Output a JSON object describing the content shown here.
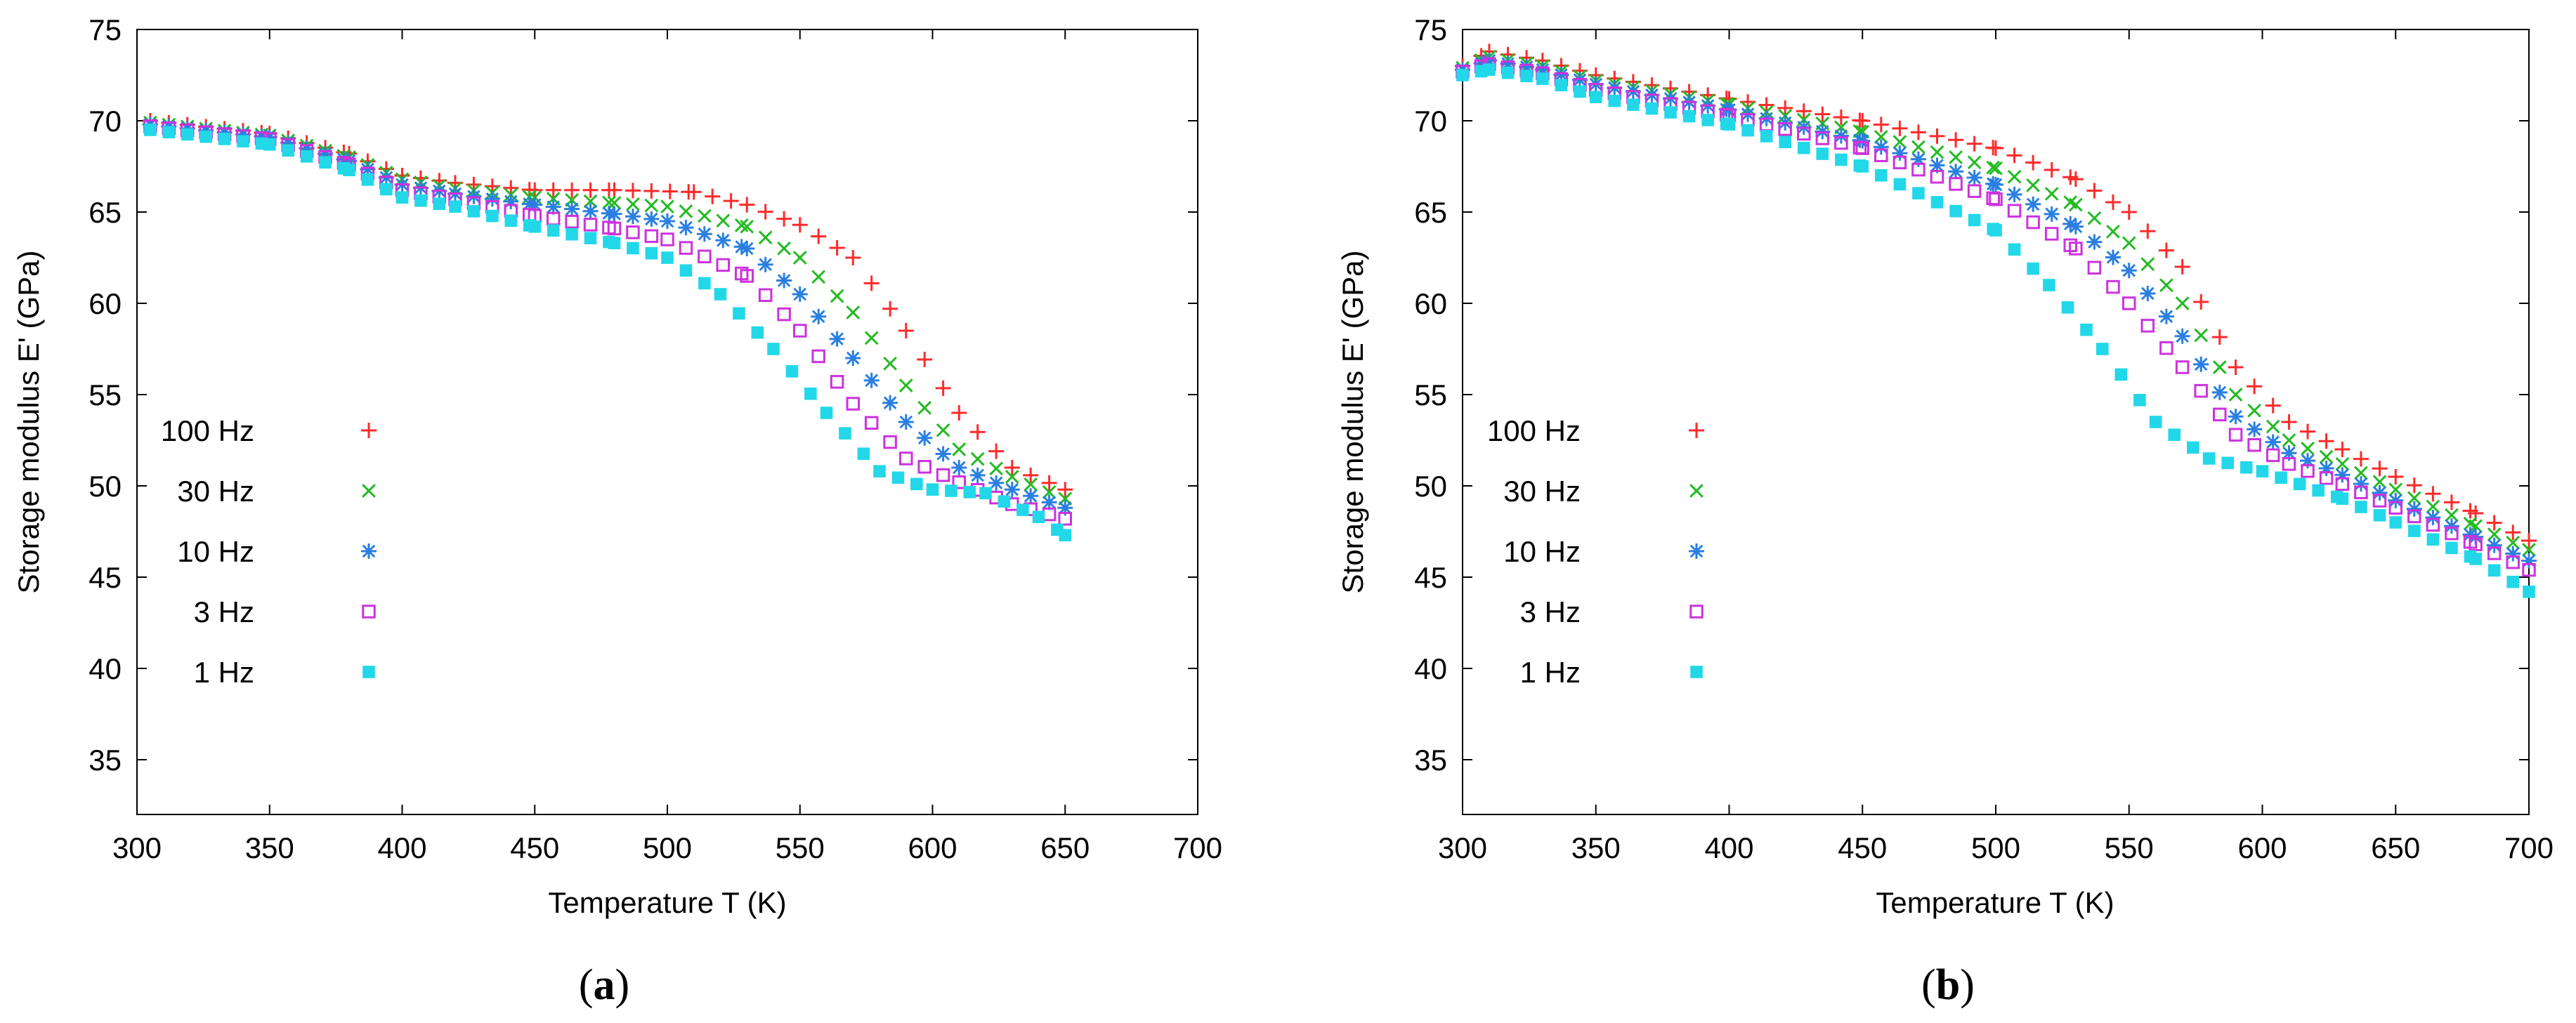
{
  "chart_data": [
    {
      "type": "scatter",
      "panel_label": [
        "(",
        "a",
        ")"
      ],
      "xlabel": "Temperature  T  (K)",
      "ylabel": "Storage modulus  E'  (GPa)",
      "xlim": [
        300,
        700
      ],
      "ylim": [
        32,
        75
      ],
      "xticks": [
        300,
        350,
        400,
        450,
        500,
        550,
        600,
        650,
        700
      ],
      "yticks": [
        35,
        40,
        45,
        50,
        55,
        60,
        65,
        70,
        75
      ],
      "legend_position": "left",
      "series": [
        {
          "name": "100 Hz",
          "marker": "plus",
          "color": "#ff2a2a",
          "x": [
            305,
            350,
            380,
            400,
            420,
            450,
            480,
            510,
            530,
            550,
            570,
            590,
            610,
            630,
            650
          ],
          "y": [
            70.0,
            69.3,
            68.2,
            67.0,
            66.6,
            66.2,
            66.2,
            66.1,
            65.4,
            64.3,
            62.5,
            58.5,
            54.0,
            51.0,
            49.8
          ]
        },
        {
          "name": "30 Hz",
          "marker": "cross",
          "color": "#22bb22",
          "x": [
            305,
            350,
            380,
            400,
            420,
            450,
            480,
            500,
            530,
            550,
            570,
            590,
            610,
            630,
            650
          ],
          "y": [
            69.9,
            69.2,
            68.0,
            66.8,
            66.3,
            65.8,
            65.5,
            65.3,
            64.2,
            62.5,
            59.5,
            55.5,
            52.0,
            50.5,
            49.3
          ]
        },
        {
          "name": "10 Hz",
          "marker": "star",
          "color": "#2a7fe0",
          "x": [
            305,
            350,
            380,
            400,
            420,
            450,
            480,
            500,
            530,
            550,
            570,
            590,
            610,
            630,
            650
          ],
          "y": [
            69.8,
            69.1,
            67.8,
            66.5,
            66.0,
            65.4,
            64.9,
            64.5,
            63.0,
            60.5,
            57.0,
            53.5,
            51.0,
            49.8,
            48.8
          ]
        },
        {
          "name": "3 Hz",
          "marker": "square-open",
          "color": "#cc33dd",
          "x": [
            305,
            350,
            380,
            400,
            420,
            450,
            480,
            500,
            530,
            550,
            570,
            590,
            610,
            630,
            650
          ],
          "y": [
            69.7,
            69.0,
            67.6,
            66.2,
            65.7,
            64.8,
            64.1,
            63.5,
            61.5,
            58.5,
            54.5,
            51.5,
            50.2,
            49.0,
            48.2
          ]
        },
        {
          "name": "1 Hz",
          "marker": "square-filled",
          "color": "#22d8e8",
          "x": [
            305,
            350,
            380,
            400,
            420,
            450,
            480,
            500,
            520,
            540,
            560,
            580,
            600,
            620,
            640,
            650
          ],
          "y": [
            69.5,
            68.7,
            67.3,
            65.8,
            65.3,
            64.2,
            63.3,
            62.5,
            60.5,
            57.5,
            54.0,
            50.8,
            49.8,
            49.6,
            48.3,
            47.3
          ]
        }
      ]
    },
    {
      "type": "scatter",
      "panel_label": [
        "(",
        "b",
        ")"
      ],
      "xlabel": "Temperature  T  (K)",
      "ylabel": "Storage modulus  E'  (GPa)",
      "xlim": [
        300,
        700
      ],
      "ylim": [
        32,
        75
      ],
      "xticks": [
        300,
        350,
        400,
        450,
        500,
        550,
        600,
        650,
        700
      ],
      "yticks": [
        35,
        40,
        45,
        50,
        55,
        60,
        65,
        70,
        75
      ],
      "legend_position": "left",
      "series": [
        {
          "name": "100 Hz",
          "marker": "plus",
          "color": "#ff2a2a",
          "x": [
            300,
            310,
            330,
            350,
            400,
            450,
            500,
            530,
            550,
            570,
            590,
            610,
            630,
            650,
            680,
            700
          ],
          "y": [
            73.0,
            73.8,
            73.3,
            72.5,
            71.2,
            70.0,
            68.5,
            66.8,
            65.0,
            62.0,
            56.5,
            53.5,
            52.0,
            50.5,
            48.5,
            47.0
          ]
        },
        {
          "name": "30 Hz",
          "marker": "cross",
          "color": "#22bb22",
          "x": [
            300,
            310,
            330,
            350,
            400,
            450,
            500,
            530,
            550,
            570,
            590,
            610,
            630,
            650,
            680,
            700
          ],
          "y": [
            72.9,
            73.5,
            73.0,
            72.2,
            70.9,
            69.4,
            67.4,
            65.4,
            63.3,
            60.0,
            55.0,
            52.5,
            51.2,
            49.8,
            47.8,
            46.5
          ]
        },
        {
          "name": "10 Hz",
          "marker": "star",
          "color": "#2a7fe0",
          "x": [
            300,
            310,
            330,
            350,
            400,
            450,
            500,
            530,
            550,
            570,
            590,
            610,
            630,
            650,
            680,
            700
          ],
          "y": [
            72.8,
            73.3,
            72.8,
            72.0,
            70.6,
            68.9,
            66.5,
            64.2,
            61.8,
            58.2,
            53.8,
            51.8,
            50.6,
            49.2,
            47.2,
            45.9
          ]
        },
        {
          "name": "3 Hz",
          "marker": "square-open",
          "color": "#cc33dd",
          "x": [
            300,
            310,
            330,
            350,
            400,
            450,
            500,
            530,
            550,
            570,
            590,
            610,
            630,
            650,
            680,
            700
          ],
          "y": [
            72.7,
            73.1,
            72.6,
            71.7,
            70.3,
            68.5,
            65.7,
            63.0,
            60.0,
            56.5,
            52.8,
            51.2,
            50.1,
            48.8,
            46.8,
            45.4
          ]
        },
        {
          "name": "1 Hz",
          "marker": "square-filled",
          "color": "#22d8e8",
          "x": [
            300,
            310,
            330,
            350,
            400,
            450,
            500,
            520,
            540,
            560,
            580,
            600,
            630,
            650,
            680,
            700
          ],
          "y": [
            72.5,
            72.8,
            72.3,
            71.3,
            69.8,
            67.5,
            64.0,
            61.0,
            57.5,
            53.5,
            51.5,
            50.8,
            49.3,
            48.0,
            46.0,
            44.2
          ]
        }
      ]
    }
  ]
}
